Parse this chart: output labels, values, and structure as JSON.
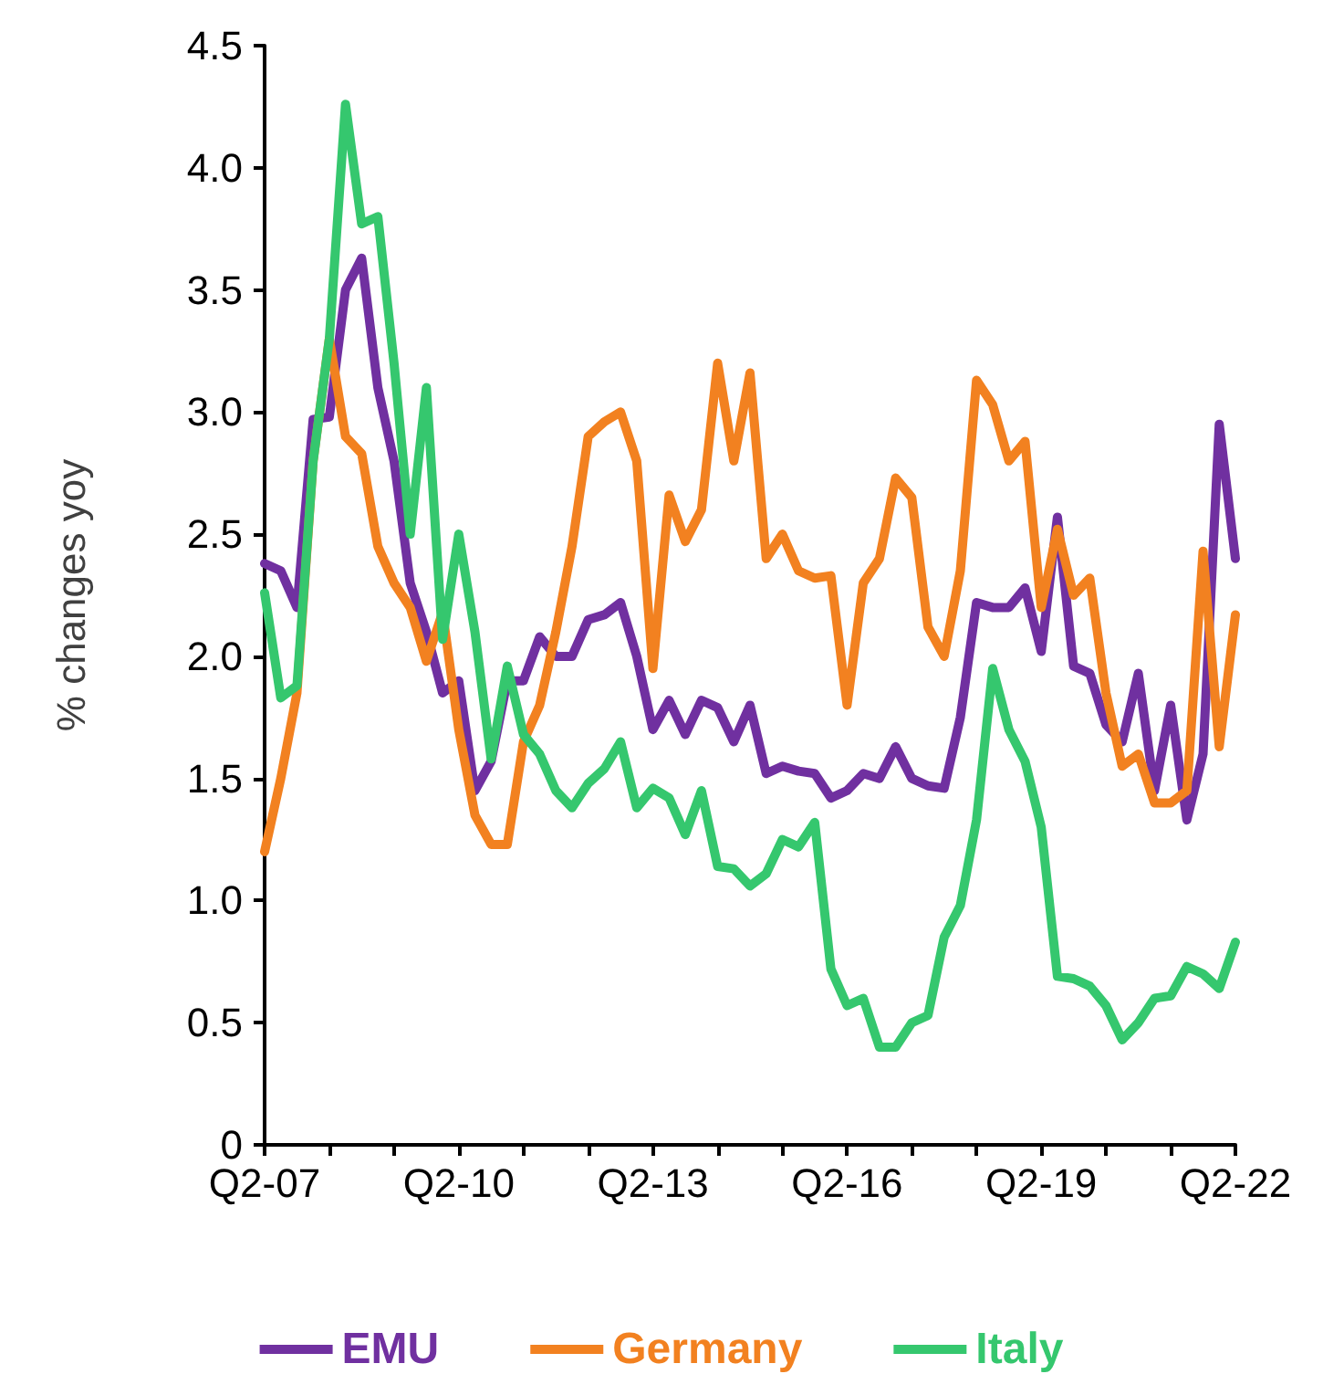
{
  "chart_data": {
    "type": "line",
    "ylabel": "% changes yoy",
    "categories": [
      "Q2-07",
      null,
      null,
      null,
      null,
      null,
      null,
      null,
      null,
      null,
      null,
      null,
      "Q2-10",
      null,
      null,
      null,
      null,
      null,
      null,
      null,
      null,
      null,
      null,
      null,
      "Q2-13",
      null,
      null,
      null,
      null,
      null,
      null,
      null,
      null,
      null,
      null,
      null,
      "Q2-16",
      null,
      null,
      null,
      null,
      null,
      null,
      null,
      null,
      null,
      null,
      null,
      "Q2-19",
      null,
      null,
      null,
      null,
      null,
      null,
      null,
      null,
      null,
      null,
      null,
      "Q2-22"
    ],
    "series": [
      {
        "name": "EMU",
        "color": "#7030a0",
        "values": [
          2.38,
          2.35,
          2.2,
          2.97,
          2.98,
          3.5,
          3.63,
          3.1,
          2.8,
          2.3,
          2.1,
          1.85,
          1.9,
          1.45,
          1.57,
          1.9,
          1.9,
          2.08,
          2.0,
          2.0,
          2.15,
          2.17,
          2.22,
          2.0,
          1.7,
          1.82,
          1.68,
          1.82,
          1.79,
          1.65,
          1.8,
          1.52,
          1.55,
          1.53,
          1.52,
          1.42,
          1.45,
          1.52,
          1.5,
          1.63,
          1.5,
          1.47,
          1.46,
          1.75,
          2.22,
          2.2,
          2.2,
          2.28,
          2.02,
          2.57,
          1.96,
          1.93,
          1.72,
          1.65,
          1.93,
          1.45,
          1.8,
          1.33,
          1.6,
          2.95,
          2.4
        ]
      },
      {
        "name": "Germany",
        "color": "#f28120",
        "values": [
          1.2,
          1.5,
          1.85,
          2.8,
          3.3,
          2.9,
          2.83,
          2.45,
          2.3,
          2.2,
          1.98,
          2.18,
          1.7,
          1.35,
          1.23,
          1.23,
          1.65,
          1.8,
          2.1,
          2.45,
          2.9,
          2.96,
          3.0,
          2.8,
          1.95,
          2.66,
          2.47,
          2.6,
          3.2,
          2.8,
          3.16,
          2.4,
          2.5,
          2.35,
          2.32,
          2.33,
          1.8,
          2.3,
          2.4,
          2.73,
          2.65,
          2.12,
          2.0,
          2.35,
          3.13,
          3.03,
          2.8,
          2.88,
          2.2,
          2.52,
          2.25,
          2.32,
          1.85,
          1.55,
          1.6,
          1.4,
          1.4,
          1.45,
          2.43,
          1.63,
          2.17
        ]
      },
      {
        "name": "Italy",
        "color": "#35c76e",
        "values": [
          2.26,
          1.83,
          1.88,
          2.8,
          3.3,
          4.26,
          3.77,
          3.8,
          3.2,
          2.5,
          3.1,
          2.07,
          2.5,
          2.1,
          1.58,
          1.96,
          1.68,
          1.6,
          1.45,
          1.38,
          1.48,
          1.54,
          1.65,
          1.38,
          1.46,
          1.42,
          1.27,
          1.45,
          1.14,
          1.13,
          1.06,
          1.11,
          1.25,
          1.22,
          1.32,
          0.72,
          0.57,
          0.6,
          0.4,
          0.4,
          0.5,
          0.53,
          0.85,
          0.98,
          1.33,
          1.95,
          1.7,
          1.57,
          1.3,
          0.69,
          0.68,
          0.65,
          0.57,
          0.43,
          0.5,
          0.6,
          0.61,
          0.73,
          0.7,
          0.64,
          0.83
        ]
      }
    ],
    "ylim": [
      0,
      4.5
    ],
    "yticks": [
      0,
      0.5,
      {
        "value": 1,
        "label": "1.0"
      },
      1.5,
      {
        "value": 2,
        "label": "2.0"
      },
      2.5,
      {
        "value": 3,
        "label": "3.0"
      },
      3.5,
      {
        "value": 4,
        "label": "4.0"
      },
      4.5
    ],
    "grid": false,
    "legend": "bottom",
    "marker": "none",
    "line_style": "solid"
  }
}
